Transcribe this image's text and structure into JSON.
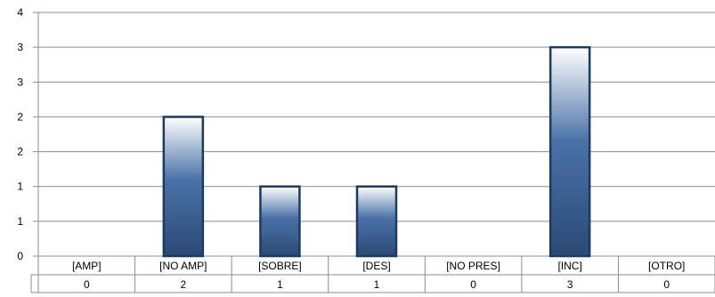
{
  "chart_data": {
    "type": "bar",
    "categories": [
      "[AMP]",
      "[NO AMP]",
      "[SOBRE]",
      "[DES]",
      "[NO PRES]",
      "[INC]",
      "[OTRO]"
    ],
    "values": [
      0,
      2,
      1,
      1,
      0,
      3,
      0
    ],
    "table_values": [
      "0",
      "2",
      "1",
      "1",
      "0",
      "3",
      "0"
    ],
    "y_tick_labels": [
      "0",
      "1",
      "1",
      "2",
      "2",
      "3",
      "3",
      "4"
    ],
    "ylim": [
      0,
      3.5
    ],
    "grid": true,
    "legend": "none",
    "title": "",
    "xlabel": "",
    "ylabel": "",
    "colors": {
      "bar_top": "#ffffff",
      "bar_mid": "#4a72a8",
      "bar_bottom": "#2a4a75",
      "bar_border": "#1f3a60",
      "grid": "#8c8c8c",
      "text": "#000000"
    }
  }
}
